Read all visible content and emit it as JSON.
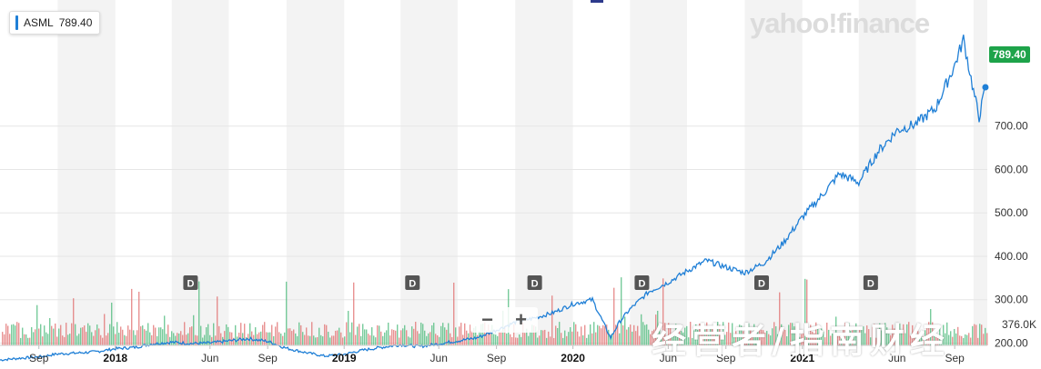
{
  "legend": {
    "ticker": "ASML",
    "value": "789.40"
  },
  "price_tag": "789.40",
  "watermark": "yahoo!finance",
  "zoom": {
    "minus": "−",
    "plus": "+"
  },
  "overlay_text": "经营者/指南财经",
  "volume_label": "376.0K",
  "colors": {
    "line": "#1f7fd6",
    "up_volume": "#49b97a",
    "down_volume": "#e06d6d",
    "price_tag": "#1ea34a"
  },
  "chart_data": {
    "type": "line",
    "ticker": "ASML",
    "title": "",
    "xlabel": "",
    "ylabel": "",
    "ylim": [
      180,
      1000
    ],
    "y_ticks": [
      200,
      300,
      400,
      500,
      600,
      700
    ],
    "y_tick_labels": [
      "200.00",
      "300.00",
      "400.00",
      "500.00",
      "600.00",
      "700.00"
    ],
    "x_ticks": [
      {
        "date": "2017-09-01",
        "label": "Sep",
        "bold": false
      },
      {
        "date": "2018-01-01",
        "label": "2018",
        "bold": true
      },
      {
        "date": "2018-06-01",
        "label": "Jun",
        "bold": false
      },
      {
        "date": "2018-09-01",
        "label": "Sep",
        "bold": false
      },
      {
        "date": "2019-01-01",
        "label": "2019",
        "bold": true
      },
      {
        "date": "2019-06-01",
        "label": "Jun",
        "bold": false
      },
      {
        "date": "2019-09-01",
        "label": "Sep",
        "bold": false
      },
      {
        "date": "2020-01-01",
        "label": "2020",
        "bold": true
      },
      {
        "date": "2020-06-01",
        "label": "Jun",
        "bold": false
      },
      {
        "date": "2020-09-01",
        "label": "Sep",
        "bold": false
      },
      {
        "date": "2021-01-01",
        "label": "2021",
        "bold": true
      },
      {
        "date": "2021-06-01",
        "label": "Jun",
        "bold": false
      },
      {
        "date": "2021-09-01",
        "label": "Sep",
        "bold": false
      }
    ],
    "series": [
      {
        "x": [
          "2017-07-01",
          "2017-08-01",
          "2017-09-01",
          "2017-10-01",
          "2017-11-01",
          "2017-12-01",
          "2018-01-01",
          "2018-02-01",
          "2018-03-01",
          "2018-04-01",
          "2018-05-01",
          "2018-06-01",
          "2018-07-01",
          "2018-08-01",
          "2018-09-01",
          "2018-10-01",
          "2018-11-01",
          "2018-12-01",
          "2019-01-01",
          "2019-02-01",
          "2019-03-01",
          "2019-04-01",
          "2019-05-01",
          "2019-06-01",
          "2019-07-01",
          "2019-08-01",
          "2019-09-01",
          "2019-10-01",
          "2019-11-01",
          "2019-12-01",
          "2020-01-01",
          "2020-02-01",
          "2020-03-01",
          "2020-03-15",
          "2020-04-01",
          "2020-05-01",
          "2020-06-01",
          "2020-07-01",
          "2020-08-01",
          "2020-09-01",
          "2020-10-01",
          "2020-11-01",
          "2020-12-01",
          "2021-01-01",
          "2021-02-01",
          "2021-03-01",
          "2021-04-01",
          "2021-05-01",
          "2021-06-01",
          "2021-07-01",
          "2021-08-01",
          "2021-09-01",
          "2021-09-15",
          "2021-10-01",
          "2021-10-10",
          "2021-10-20"
        ],
        "y": [
          161,
          165,
          168,
          175,
          177,
          180,
          187,
          190,
          198,
          202,
          199,
          200,
          205,
          210,
          204,
          188,
          178,
          170,
          174,
          184,
          190,
          196,
          192,
          198,
          205,
          212,
          230,
          248,
          258,
          270,
          290,
          300,
          212,
          248,
          278,
          318,
          340,
          366,
          390,
          375,
          362,
          385,
          430,
          490,
          540,
          590,
          570,
          640,
          690,
          705,
          740,
          840,
          900,
          780,
          720,
          789.4
        ]
      }
    ],
    "events": [
      {
        "date": "2018-05-01",
        "label": "D"
      },
      {
        "date": "2019-04-20",
        "label": "D"
      },
      {
        "date": "2019-11-01",
        "label": "D"
      },
      {
        "date": "2020-04-20",
        "label": "D"
      },
      {
        "date": "2020-10-28",
        "label": "D"
      },
      {
        "date": "2021-04-20",
        "label": "D"
      }
    ]
  }
}
